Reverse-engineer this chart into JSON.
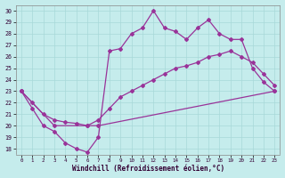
{
  "xlabel": "Windchill (Refroidissement éolien,°C)",
  "bg_color": "#c5ecec",
  "line_color": "#993399",
  "grid_color": "#a8d8d8",
  "xlim": [
    -0.5,
    23.5
  ],
  "ylim": [
    17.5,
    30.5
  ],
  "yticks": [
    18,
    19,
    20,
    21,
    22,
    23,
    24,
    25,
    26,
    27,
    28,
    29,
    30
  ],
  "xticks": [
    0,
    1,
    2,
    3,
    4,
    5,
    6,
    7,
    8,
    9,
    10,
    11,
    12,
    13,
    14,
    15,
    16,
    17,
    18,
    19,
    20,
    21,
    22,
    23
  ],
  "line1_x": [
    0,
    1,
    2,
    3,
    4,
    5,
    6,
    7,
    8,
    9,
    10,
    11,
    12,
    13,
    14,
    15,
    16,
    17,
    18,
    19,
    20,
    21,
    22,
    23
  ],
  "line1_y": [
    23.0,
    21.5,
    20.0,
    19.5,
    18.5,
    18.0,
    17.7,
    19.0,
    26.5,
    26.7,
    28.0,
    28.5,
    30.0,
    28.5,
    28.2,
    27.5,
    28.5,
    29.2,
    28.0,
    27.5,
    27.5,
    25.0,
    23.8,
    23.0
  ],
  "line2_x": [
    0,
    1,
    2,
    3,
    4,
    5,
    6,
    7,
    8,
    9,
    10,
    11,
    12,
    13,
    14,
    15,
    16,
    17,
    18,
    19,
    20,
    21,
    22,
    23
  ],
  "line2_y": [
    23.0,
    22.0,
    21.0,
    20.5,
    20.3,
    20.2,
    20.0,
    20.5,
    21.5,
    22.5,
    23.0,
    23.5,
    24.0,
    24.5,
    25.0,
    25.2,
    25.5,
    26.0,
    26.2,
    26.5,
    26.0,
    25.5,
    24.5,
    23.5
  ],
  "line3_x": [
    0,
    3,
    6,
    7,
    23
  ],
  "line3_y": [
    23.0,
    20.0,
    20.0,
    20.0,
    23.0
  ]
}
